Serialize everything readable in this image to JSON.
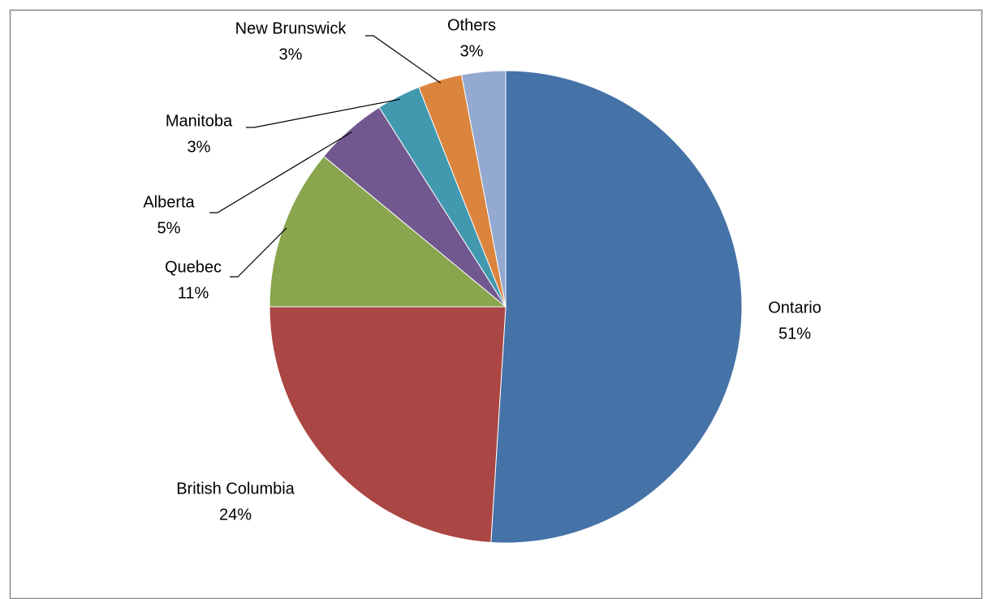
{
  "chart_data": {
    "type": "pie",
    "categories": [
      "Ontario",
      "British Columbia",
      "Quebec",
      "Alberta",
      "Manitoba",
      "New Brunswick",
      "Others"
    ],
    "values": [
      51,
      24,
      11,
      5,
      3,
      3,
      3
    ],
    "value_labels": [
      "51%",
      "24%",
      "11%",
      "5%",
      "3%",
      "3%",
      "3%"
    ],
    "colors": [
      "#4572a7",
      "#aa4643",
      "#89a54e",
      "#71588f",
      "#4198af",
      "#db843d",
      "#93a9cf"
    ]
  }
}
